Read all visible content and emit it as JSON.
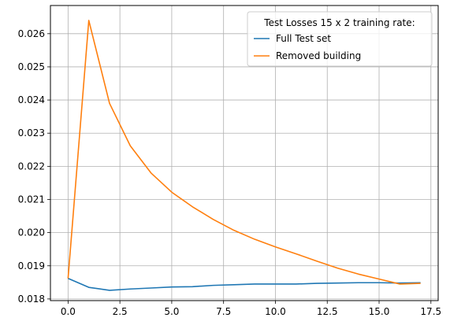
{
  "chart_data": {
    "type": "line",
    "title": "",
    "xlabel": "",
    "ylabel": "",
    "xlim": [
      -0.85,
      17.85
    ],
    "ylim": [
      0.01795,
      0.02685
    ],
    "grid": true,
    "x_ticks": [
      0.0,
      2.5,
      5.0,
      7.5,
      10.0,
      12.5,
      15.0,
      17.5
    ],
    "x_tick_labels": [
      "0.0",
      "2.5",
      "5.0",
      "7.5",
      "10.0",
      "12.5",
      "15.0",
      "17.5"
    ],
    "y_ticks": [
      0.018,
      0.019,
      0.02,
      0.021,
      0.022,
      0.023,
      0.024,
      0.025,
      0.026
    ],
    "y_tick_labels": [
      "0.018",
      "0.019",
      "0.020",
      "0.021",
      "0.022",
      "0.023",
      "0.024",
      "0.025",
      "0.026"
    ],
    "legend": {
      "title": "Test Losses 15 x 2 training rate:",
      "placement": "top-right"
    },
    "x": [
      0,
      1,
      2,
      3,
      4,
      5,
      6,
      7,
      8,
      9,
      10,
      11,
      12,
      13,
      14,
      15,
      16,
      17
    ],
    "series": [
      {
        "name": "Full Test set",
        "color": "#1f77b4",
        "values": [
          0.01862,
          0.01835,
          0.01826,
          0.0183,
          0.01833,
          0.01836,
          0.01837,
          0.01841,
          0.01843,
          0.01845,
          0.01845,
          0.01845,
          0.01847,
          0.01848,
          0.01849,
          0.01849,
          0.01848,
          0.01849
        ]
      },
      {
        "name": "Removed building",
        "color": "#ff7f0e",
        "values": [
          0.01862,
          0.0264,
          0.0239,
          0.02262,
          0.0218,
          0.02122,
          0.02078,
          0.0204,
          0.02007,
          0.0198,
          0.01957,
          0.01936,
          0.01914,
          0.01893,
          0.01875,
          0.0186,
          0.01845,
          0.01847
        ]
      }
    ]
  }
}
